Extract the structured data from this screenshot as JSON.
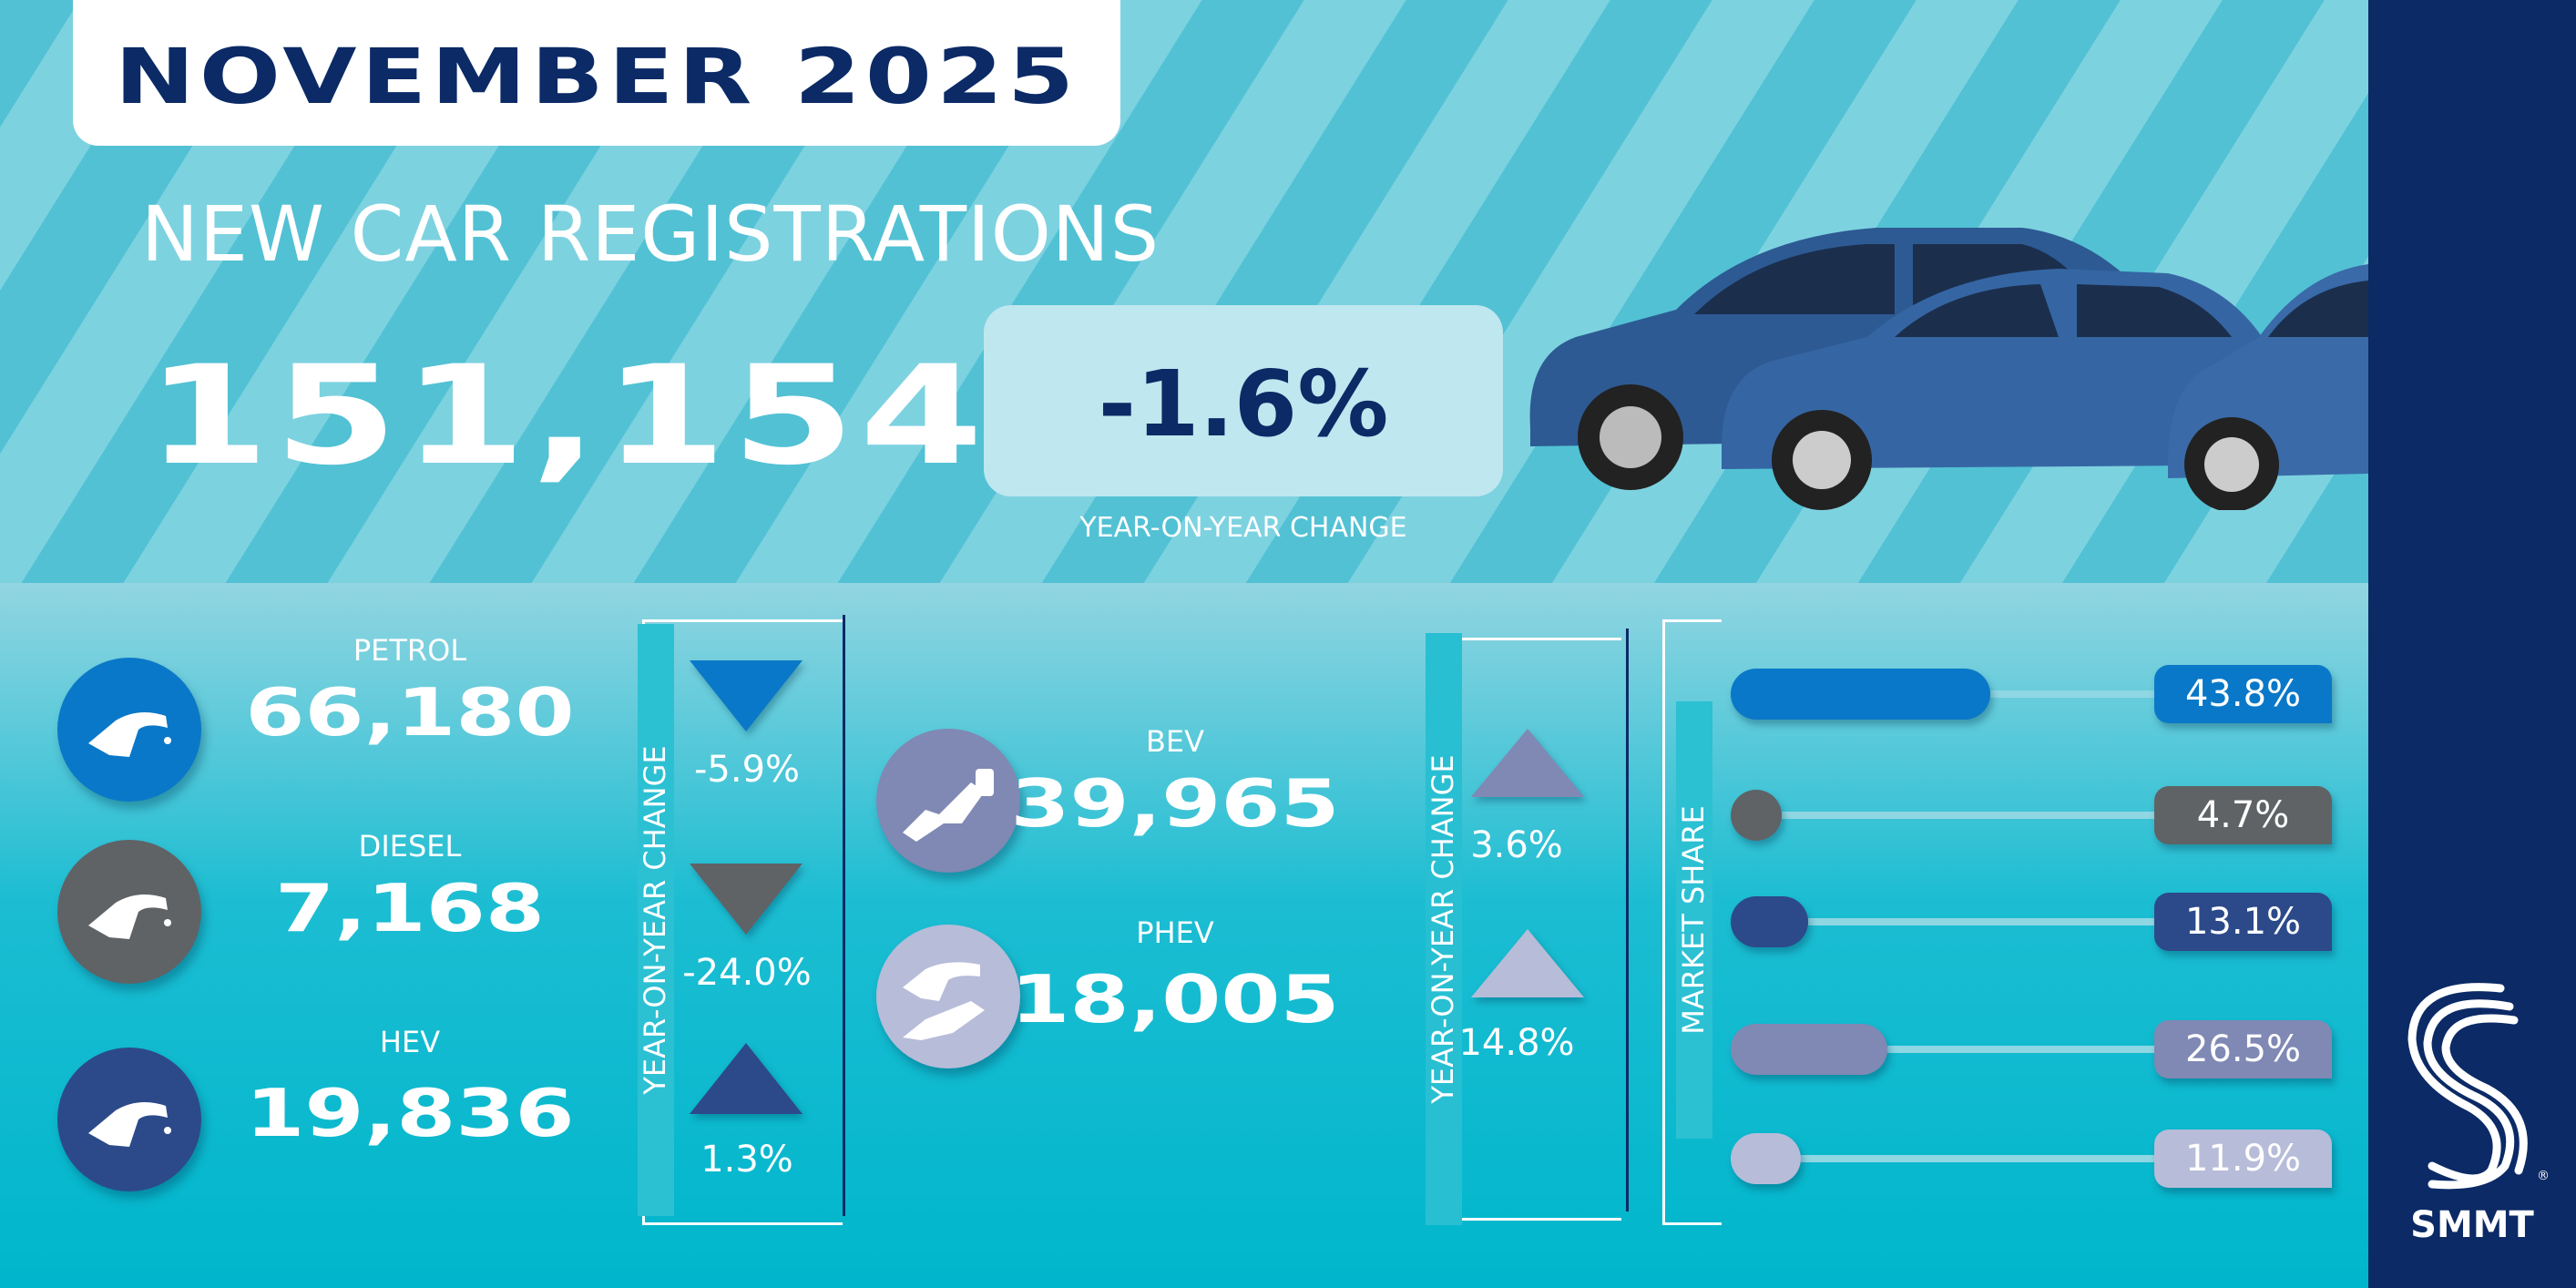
{
  "header": {
    "month": "NOVEMBER 2025",
    "title": "NEW CAR REGISTRATIONS",
    "total": "151,154",
    "yoy_change": "-1.6%",
    "yoy_label": "YEAR-ON-YEAR CHANGE"
  },
  "fuels": [
    {
      "name": "PETROL",
      "registrations": "66,180",
      "yoy": "-5.9%",
      "direction": "down",
      "color": "#0a78c8",
      "icon": "fuel-pump-icon"
    },
    {
      "name": "DIESEL",
      "registrations": "7,168",
      "yoy": "-24.0%",
      "direction": "down",
      "color": "#5f6366",
      "icon": "fuel-pump-icon"
    },
    {
      "name": "HEV",
      "registrations": "19,836",
      "yoy": "1.3%",
      "direction": "up",
      "color": "#2c4a8a",
      "icon": "fuel-pump-icon"
    },
    {
      "name": "BEV",
      "registrations": "39,965",
      "yoy": "3.6%",
      "direction": "up",
      "color": "#8088b4",
      "icon": "ev-plug-icon"
    },
    {
      "name": "PHEV",
      "registrations": "18,005",
      "yoy": "14.8%",
      "direction": "up",
      "color": "#b7bcd9",
      "icon": "fuel-and-plug-icon"
    }
  ],
  "yoy_axis_label": "YEAR-ON-YEAR CHANGE",
  "market_share_label": "MARKET SHARE",
  "chart_data": {
    "type": "bar",
    "categories": [
      "PETROL",
      "DIESEL",
      "HEV",
      "BEV",
      "PHEV"
    ],
    "values": [
      43.8,
      4.7,
      13.1,
      26.5,
      11.9
    ],
    "labels": [
      "43.8%",
      "4.7%",
      "13.1%",
      "26.5%",
      "11.9%"
    ],
    "colors": [
      "#0a78c8",
      "#5f6366",
      "#2c4a8a",
      "#8088b4",
      "#b7bcd9"
    ],
    "ylabel": "MARKET SHARE",
    "orientation": "horizontal"
  },
  "brand": {
    "name": "SMMT",
    "strip_color": "#0b2a66"
  }
}
